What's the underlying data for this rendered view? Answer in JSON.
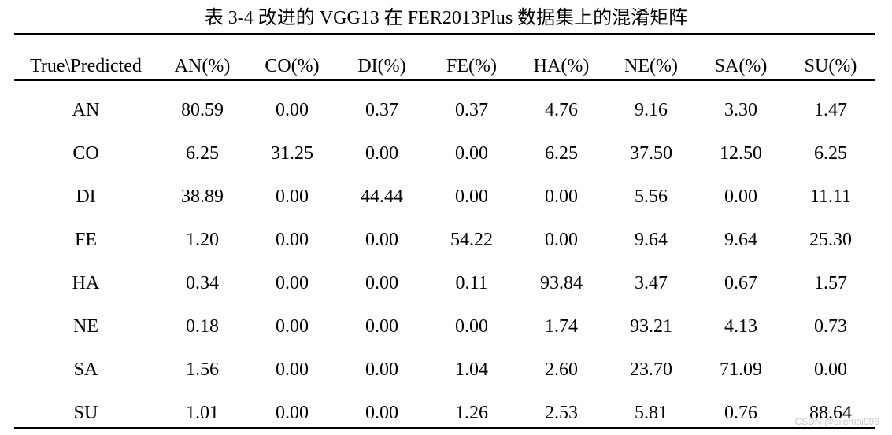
{
  "caption": "表 3-4  改进的 VGG13 在 FER2013Plus 数据集上的混淆矩阵",
  "watermark": "CSDN @dilemai996",
  "chart_data": {
    "type": "table",
    "title": "表 3-4  改进的 VGG13 在 FER2013Plus 数据集上的混淆矩阵",
    "corner_header": "True\\Predicted",
    "columns": [
      "AN(%)",
      "CO(%)",
      "DI(%)",
      "FE(%)",
      "HA(%)",
      "NE(%)",
      "SA(%)",
      "SU(%)"
    ],
    "rows": [
      {
        "label": "AN",
        "values": [
          "80.59",
          "0.00",
          "0.37",
          "0.37",
          "4.76",
          "9.16",
          "3.30",
          "1.47"
        ]
      },
      {
        "label": "CO",
        "values": [
          "6.25",
          "31.25",
          "0.00",
          "0.00",
          "6.25",
          "37.50",
          "12.50",
          "6.25"
        ]
      },
      {
        "label": "DI",
        "values": [
          "38.89",
          "0.00",
          "44.44",
          "0.00",
          "0.00",
          "5.56",
          "0.00",
          "11.11"
        ]
      },
      {
        "label": "FE",
        "values": [
          "1.20",
          "0.00",
          "0.00",
          "54.22",
          "0.00",
          "9.64",
          "9.64",
          "25.30"
        ]
      },
      {
        "label": "HA",
        "values": [
          "0.34",
          "0.00",
          "0.00",
          "0.11",
          "93.84",
          "3.47",
          "0.67",
          "1.57"
        ]
      },
      {
        "label": "NE",
        "values": [
          "0.18",
          "0.00",
          "0.00",
          "0.00",
          "1.74",
          "93.21",
          "4.13",
          "0.73"
        ]
      },
      {
        "label": "SA",
        "values": [
          "1.56",
          "0.00",
          "0.00",
          "1.04",
          "2.60",
          "23.70",
          "71.09",
          "0.00"
        ]
      },
      {
        "label": "SU",
        "values": [
          "1.01",
          "0.00",
          "0.00",
          "1.26",
          "2.53",
          "5.81",
          "0.76",
          "88.64"
        ]
      }
    ]
  }
}
